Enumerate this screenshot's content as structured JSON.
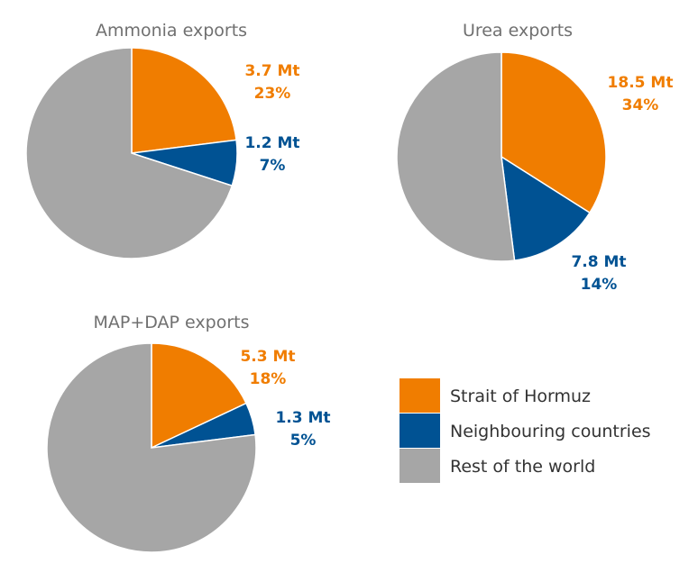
{
  "colors": {
    "Strait of Hormuz": "#F07D00",
    "Neighbouring countries": "#005293",
    "Rest of the world": "#A6A6A6"
  },
  "legend": [
    "Strait of Hormuz",
    "Neighbouring countries",
    "Rest of the world"
  ],
  "chart_data": [
    {
      "type": "pie",
      "title": "Ammonia exports",
      "slices": [
        {
          "name": "Strait of Hormuz",
          "percent": 23,
          "value_label": "3.7 Mt",
          "pct_label": "23%"
        },
        {
          "name": "Neighbouring countries",
          "percent": 7,
          "value_label": "1.2 Mt",
          "pct_label": "7%"
        },
        {
          "name": "Rest of the world",
          "percent": 70
        }
      ]
    },
    {
      "type": "pie",
      "title": "Urea exports",
      "slices": [
        {
          "name": "Strait of Hormuz",
          "percent": 34,
          "value_label": "18.5 Mt",
          "pct_label": "34%"
        },
        {
          "name": "Neighbouring countries",
          "percent": 14,
          "value_label": "7.8 Mt",
          "pct_label": "14%"
        },
        {
          "name": "Rest of the world",
          "percent": 52
        }
      ]
    },
    {
      "type": "pie",
      "title": "MAP+DAP exports",
      "slices": [
        {
          "name": "Strait of Hormuz",
          "percent": 18,
          "value_label": "5.3 Mt",
          "pct_label": "18%"
        },
        {
          "name": "Neighbouring countries",
          "percent": 5,
          "value_label": "1.3 Mt",
          "pct_label": "5%"
        },
        {
          "name": "Rest of the world",
          "percent": 77
        }
      ]
    }
  ]
}
